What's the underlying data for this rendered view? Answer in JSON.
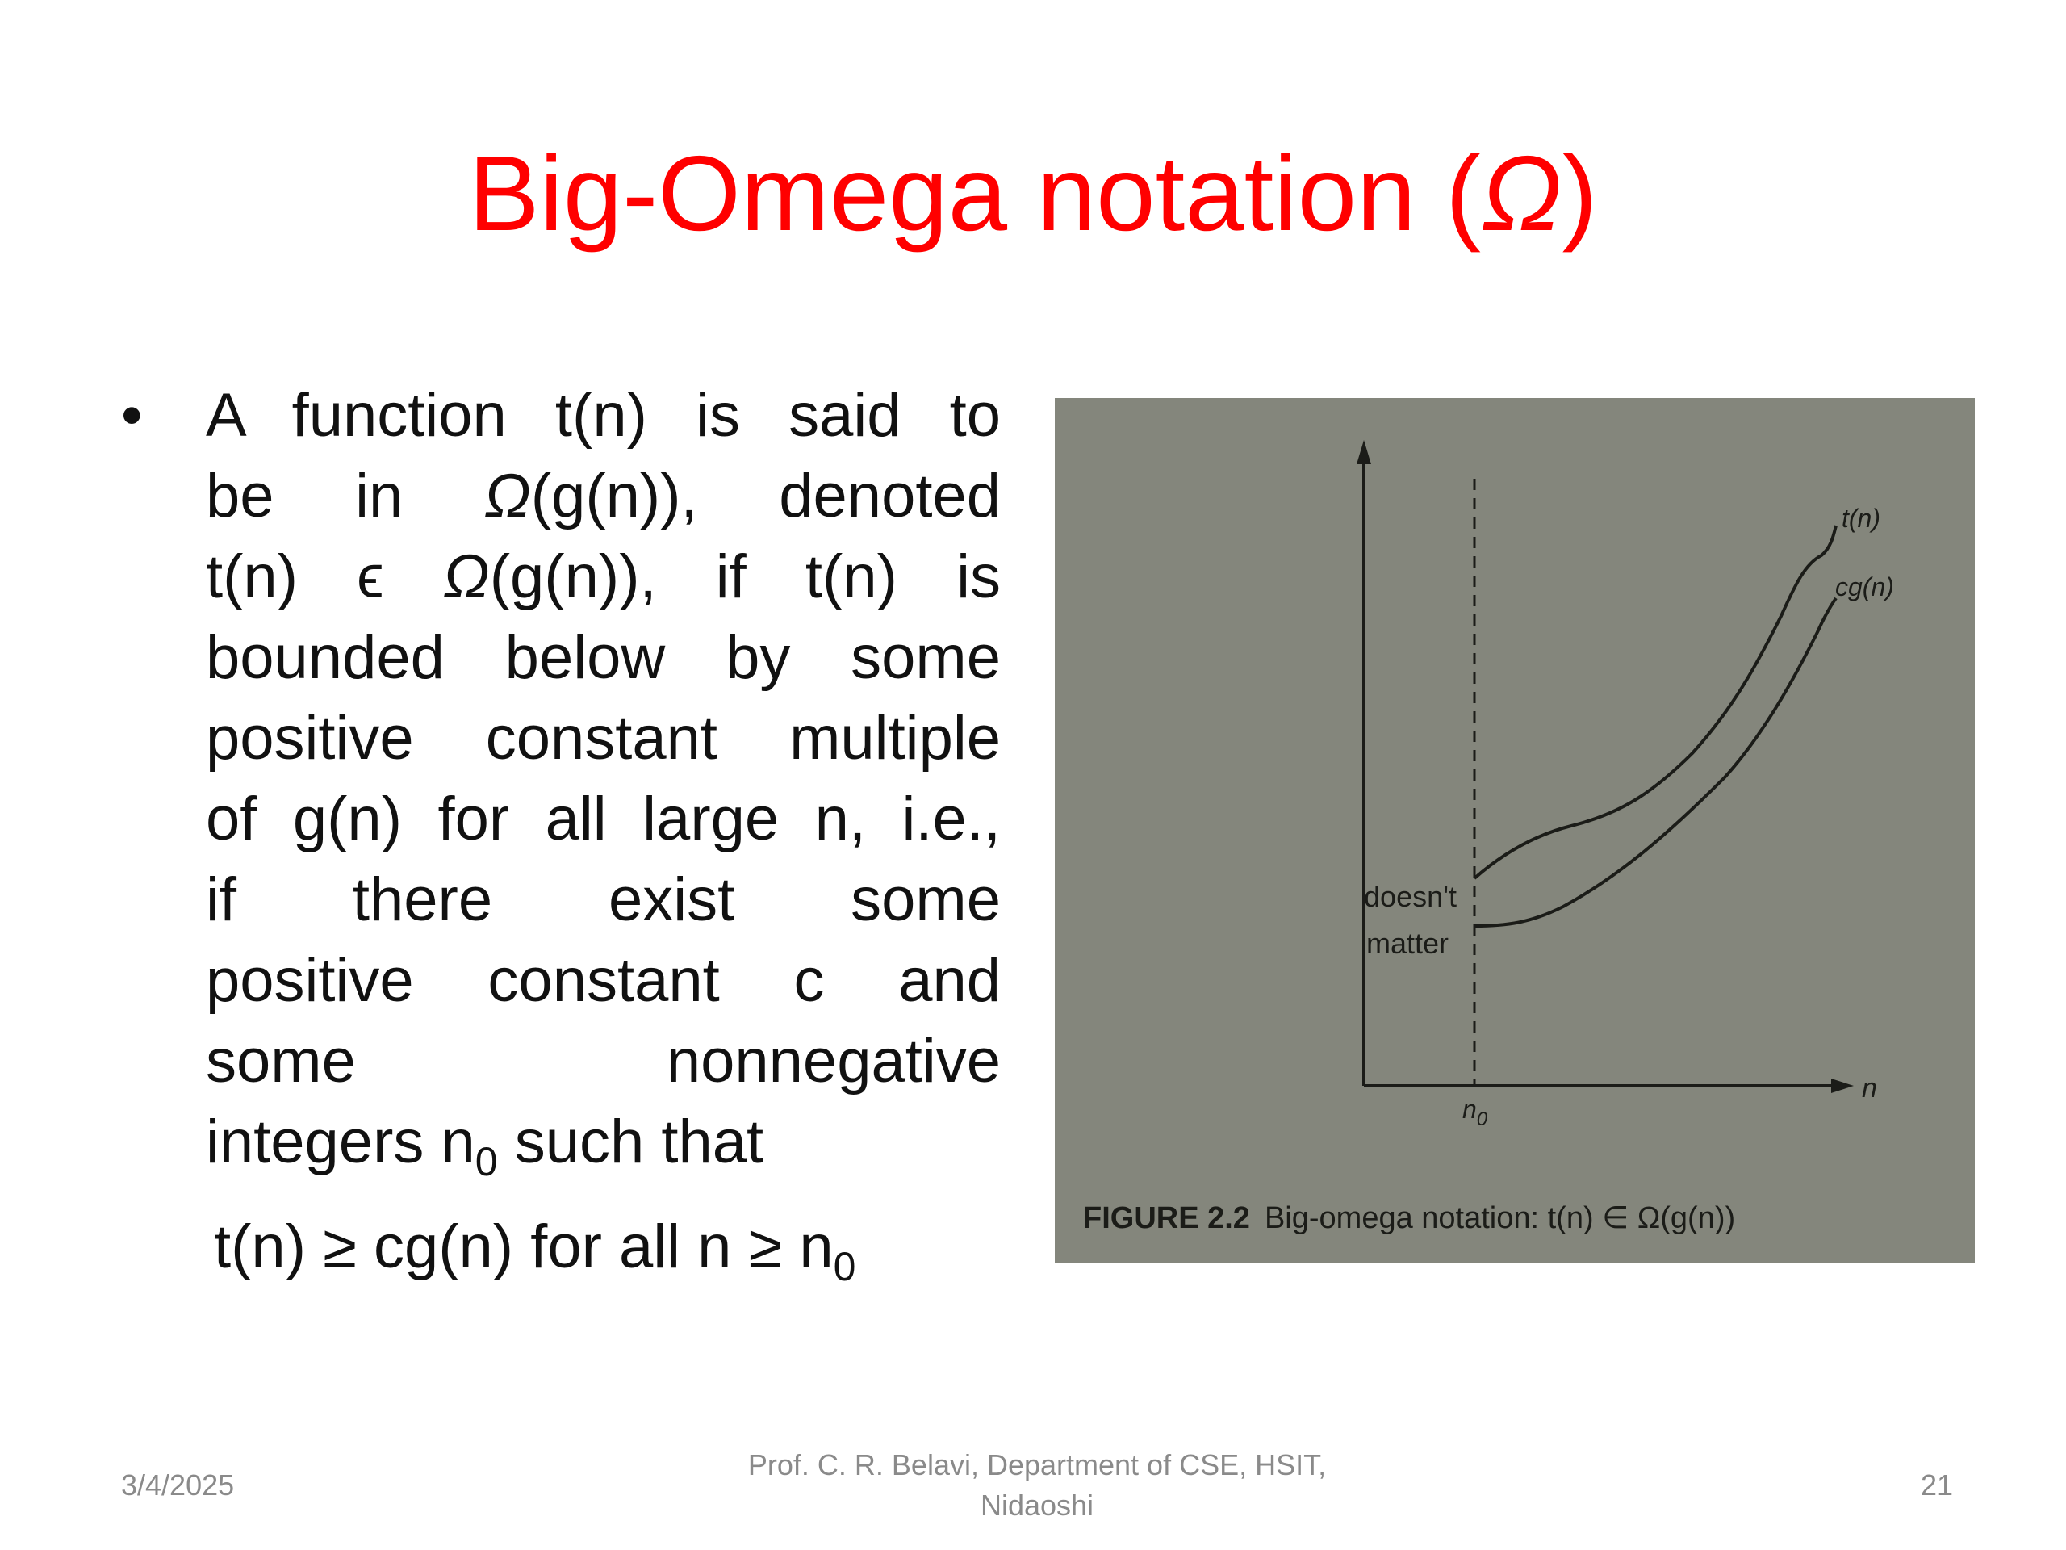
{
  "title": {
    "text": "Big-Omega notation (",
    "symbol": "Ω",
    "close": ")"
  },
  "bullet": {
    "lines": [
      "A function t(n) is said to",
      [
        "be in ",
        "Ω",
        "(g(n)), denoted"
      ],
      [
        "t(n) ϵ ",
        "Ω",
        "(g(n)), if t(n) is"
      ],
      "bounded below by some",
      "positive constant multiple",
      "of g(n) for all large n, i.e.,",
      "if there exist some",
      "positive constant c and",
      "some nonnegative"
    ],
    "last_line_prefix": "integers n",
    "last_line_sub": "0",
    "last_line_suffix": " such that",
    "formula_prefix": "t(n) ≥ cg(n) for all n ≥ n",
    "formula_sub": "0"
  },
  "figure": {
    "label_tn": "t(n)",
    "label_cgn": "cg(n)",
    "label_doesnt": "doesn't",
    "label_matter": "matter",
    "label_n": "n",
    "label_n0": "n",
    "label_n0_sub": "0",
    "caption_bold": "FIGURE 2.2",
    "caption_text": "Big-omega notation: t(n) ∈ Ω(g(n))",
    "background_color": "#84867c"
  },
  "footer": {
    "date": "3/4/2025",
    "center_line1": "Prof. C. R. Belavi, Department of CSE, HSIT,",
    "center_line2": "Nidaoshi",
    "page": "21"
  }
}
